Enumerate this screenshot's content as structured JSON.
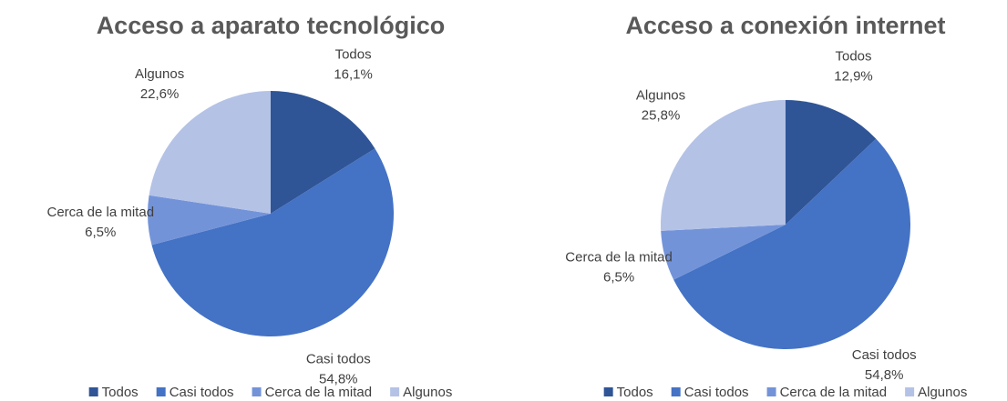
{
  "chart_data": [
    {
      "type": "pie",
      "title": "Acceso a aparato tecnológico",
      "categories": [
        "Todos",
        "Casi todos",
        "Cerca de la mitad",
        "Algunos"
      ],
      "values": [
        16.1,
        54.8,
        6.5,
        22.6
      ],
      "value_labels": [
        "16,1%",
        "54,8%",
        "6,5%",
        "22,6%"
      ],
      "colors": [
        "#2f5597",
        "#4472c4",
        "#7393d9",
        "#b4c2e6"
      ],
      "legend": "bottom"
    },
    {
      "type": "pie",
      "title": "Acceso a conexión internet",
      "categories": [
        "Todos",
        "Casi todos",
        "Cerca de la mitad",
        "Algunos"
      ],
      "values": [
        12.9,
        54.8,
        6.5,
        25.8
      ],
      "value_labels": [
        "12,9%",
        "54,8%",
        "6,5%",
        "25,8%"
      ],
      "colors": [
        "#2f5597",
        "#4472c4",
        "#7393d9",
        "#b4c2e6"
      ],
      "legend": "bottom"
    }
  ]
}
